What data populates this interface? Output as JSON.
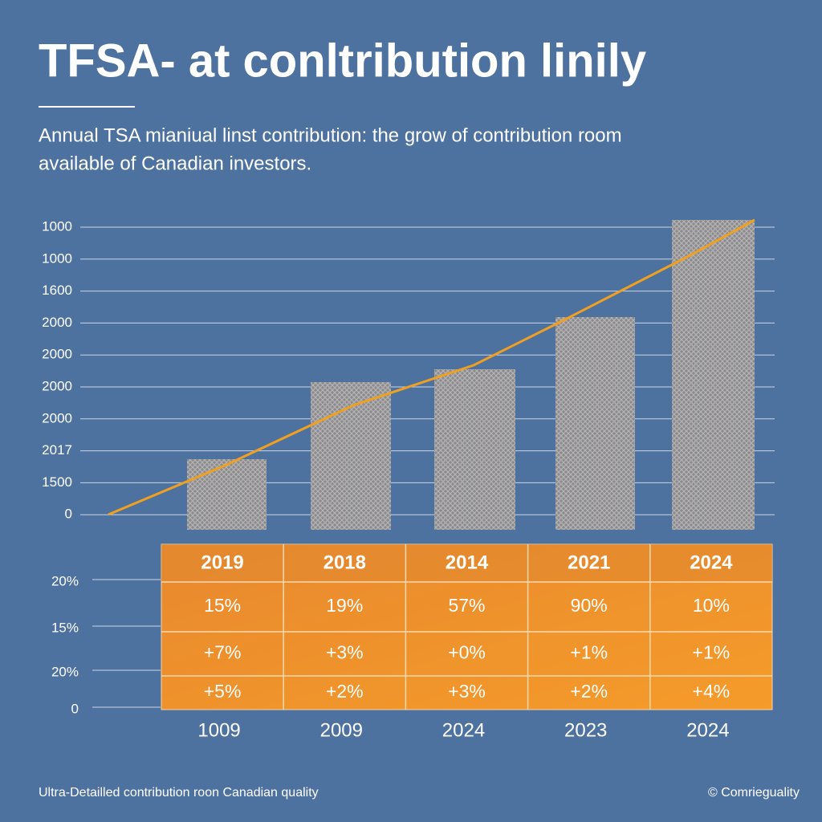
{
  "title": "TFSA- at conltribution linily",
  "subtitle_lines": [
    "Annual TSA mianiual linst contribution: the grow of contribution room",
    "available of Canadian investors."
  ],
  "y_axis_labels": [
    "1000",
    "1000",
    "1600",
    "2000",
    "2000",
    "2000",
    "2000",
    "2017",
    "1500",
    "0"
  ],
  "table": {
    "header": [
      "2019",
      "2018",
      "2014",
      "2021",
      "2024"
    ],
    "rows": [
      [
        "15%",
        "19%",
        "57%",
        "90%",
        "10%"
      ],
      [
        "+7%",
        "+3%",
        "+0%",
        "+1%",
        "+1%"
      ],
      [
        "+5%",
        "+2%",
        "+3%",
        "+2%",
        "+4%"
      ]
    ]
  },
  "table_axis_labels": [
    "20%",
    "15%",
    "20%",
    "0"
  ],
  "x_labels": [
    "1009",
    "2009",
    "2024",
    "2023",
    "2024"
  ],
  "footer": {
    "left": "Ultra-Detailled contribution roon Canadian quality",
    "right": "© Comrieguality"
  }
}
